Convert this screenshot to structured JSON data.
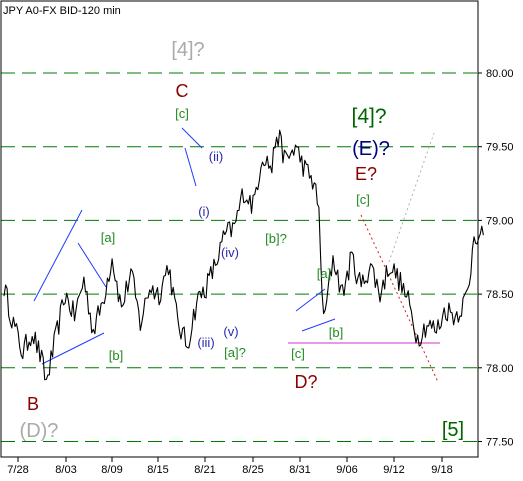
{
  "chart_data": {
    "type": "line",
    "title": "JPY A0-FX BID-120 min",
    "x_tick_labels": [
      "7/28",
      "8/03",
      "8/09",
      "8/15",
      "8/21",
      "8/25",
      "8/31",
      "9/06",
      "9/12",
      "9/18"
    ],
    "y_ticks": [
      77.5,
      78.0,
      78.5,
      79.0,
      79.5,
      80.0
    ],
    "y_tick_labels": [
      "77.50",
      "78.00",
      "78.50",
      "79.00",
      "79.50",
      "80.00"
    ],
    "ylim": [
      77.4,
      80.45
    ],
    "grid": true,
    "series": [
      {
        "values": [
          [
            0,
            78.55
          ],
          [
            2,
            78.3
          ],
          [
            4,
            78.1
          ],
          [
            6,
            78.25
          ],
          [
            8,
            78.05
          ],
          [
            9,
            77.9
          ],
          [
            11,
            78.2
          ],
          [
            13,
            78.5
          ],
          [
            15,
            78.35
          ],
          [
            17,
            78.6
          ],
          [
            19,
            78.25
          ],
          [
            21,
            78.45
          ],
          [
            23,
            78.75
          ],
          [
            25,
            78.4
          ],
          [
            27,
            78.65
          ],
          [
            29,
            78.3
          ],
          [
            31,
            78.55
          ],
          [
            33,
            78.5
          ],
          [
            35,
            78.7
          ],
          [
            37,
            78.3
          ],
          [
            39,
            78.15
          ],
          [
            41,
            78.45
          ],
          [
            43,
            78.55
          ],
          [
            45,
            78.7
          ],
          [
            47,
            78.9
          ],
          [
            49,
            78.95
          ],
          [
            51,
            79.2
          ],
          [
            53,
            79.1
          ],
          [
            55,
            79.45
          ],
          [
            57,
            79.35
          ],
          [
            58,
            79.6
          ],
          [
            60,
            79.4
          ],
          [
            62,
            79.5
          ],
          [
            64,
            79.35
          ],
          [
            66,
            79.25
          ],
          [
            67,
            79.05
          ],
          [
            68,
            78.3
          ],
          [
            70,
            78.75
          ],
          [
            72,
            78.5
          ],
          [
            74,
            78.75
          ],
          [
            76,
            78.55
          ],
          [
            78,
            78.7
          ],
          [
            80,
            78.5
          ],
          [
            82,
            78.7
          ],
          [
            84,
            78.6
          ],
          [
            86,
            78.45
          ],
          [
            88,
            78.2
          ],
          [
            90,
            78.3
          ],
          [
            92,
            78.25
          ],
          [
            94,
            78.4
          ],
          [
            96,
            78.35
          ],
          [
            98,
            78.45
          ],
          [
            99,
            78.55
          ],
          [
            100,
            78.95
          ],
          [
            101,
            78.85
          ],
          [
            102,
            78.9
          ]
        ]
      }
    ],
    "annotations": [
      {
        "text": "[4]?",
        "color": "#aaaaaa"
      },
      {
        "text": "C",
        "color": "#8b0000"
      },
      {
        "text": "[c]",
        "color": "#228b22"
      },
      {
        "text": "[4]?",
        "color": "#006400"
      },
      {
        "text": "(E)?",
        "color": "#000080"
      },
      {
        "text": "E?",
        "color": "#8b0000"
      },
      {
        "text": "[c]",
        "color": "#228b22"
      },
      {
        "text": "(ii)",
        "color": "#2a2aaa"
      },
      {
        "text": "(i)",
        "color": "#2a2aaa"
      },
      {
        "text": "[a]",
        "color": "#228b22"
      },
      {
        "text": "(iv)",
        "color": "#2a2aaa"
      },
      {
        "text": "[b]?",
        "color": "#228b22"
      },
      {
        "text": "[a]",
        "color": "#228b22"
      },
      {
        "text": "(v)",
        "color": "#2a2aaa"
      },
      {
        "text": "(iii)",
        "color": "#2a2aaa"
      },
      {
        "text": "[a]?",
        "color": "#228b22"
      },
      {
        "text": "[b]",
        "color": "#228b22"
      },
      {
        "text": "[b]",
        "color": "#228b22"
      },
      {
        "text": "[c]",
        "color": "#228b22"
      },
      {
        "text": "D?",
        "color": "#8b0000"
      },
      {
        "text": "B",
        "color": "#8b0000"
      },
      {
        "text": "(D)?",
        "color": "#aaaaaa"
      },
      {
        "text": "[5]",
        "color": "#006400"
      }
    ],
    "colors": {
      "price": "#000000",
      "grid": "#007a00",
      "channel": "#1e3cff",
      "projection_down": "#d81818",
      "projection_up": "#b0b0b0",
      "support": "#cc33cc",
      "frame": "#000000"
    }
  }
}
